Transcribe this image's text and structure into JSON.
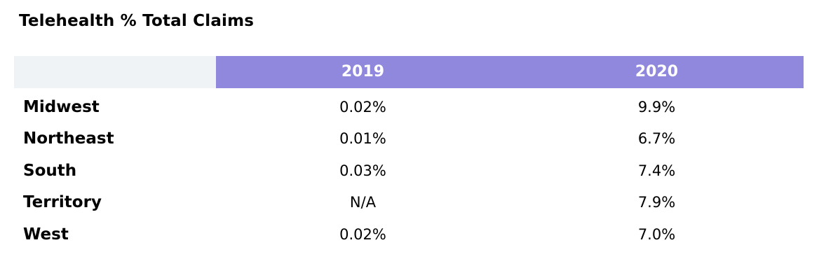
{
  "colors": {
    "header_fill": "#8f88dc",
    "header_stub_fill": "#f0f3f5",
    "header_text": "#ffffff",
    "body_text": "#000000"
  },
  "chart_data": {
    "type": "table",
    "title": "Telehealth % Total Claims",
    "columns": [
      "2019",
      "2020"
    ],
    "rows": [
      {
        "label": "Midwest",
        "values": [
          "0.02%",
          "9.9%"
        ]
      },
      {
        "label": "Northeast",
        "values": [
          "0.01%",
          "6.7%"
        ]
      },
      {
        "label": "South",
        "values": [
          "0.03%",
          "7.4%"
        ]
      },
      {
        "label": "Territory",
        "values": [
          "N/A",
          "7.9%"
        ]
      },
      {
        "label": "West",
        "values": [
          "0.02%",
          "7.0%"
        ]
      }
    ]
  }
}
